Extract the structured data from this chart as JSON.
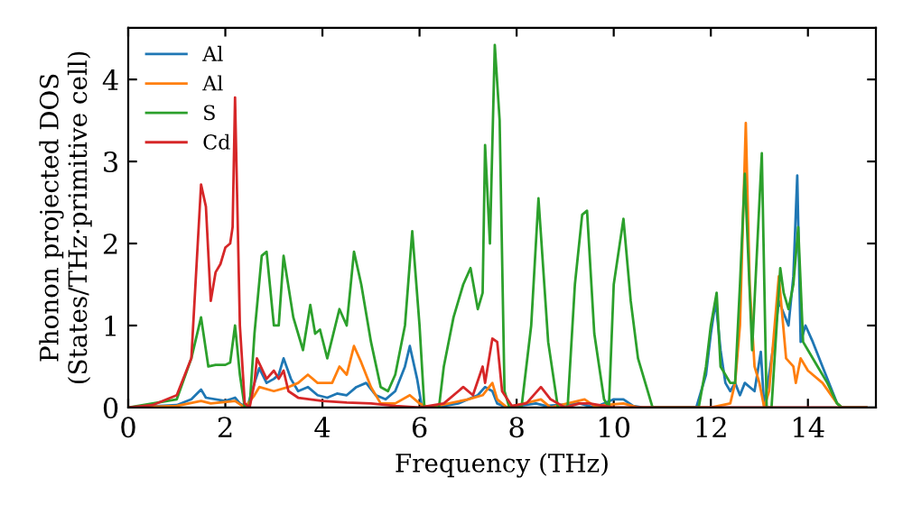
{
  "chart_data": {
    "type": "line",
    "xlabel": "Frequency (THz)",
    "ylabel": "Phonon projected DOS\n(States/THz·primitive cell)",
    "xlim": [
      0,
      15.4
    ],
    "ylim": [
      0,
      4.63
    ],
    "xticks": [
      0,
      2,
      4,
      6,
      8,
      10,
      12,
      14
    ],
    "yticks": [
      0,
      1,
      2,
      3,
      4
    ],
    "grid": false,
    "legend": "top left",
    "marker": "none",
    "line_style": "solid",
    "series": [
      {
        "name": "Al",
        "color": "#1f77b4",
        "x": [
          0,
          1.0,
          1.3,
          1.5,
          1.6,
          2.0,
          2.2,
          2.3,
          2.45,
          2.6,
          2.7,
          2.85,
          3.0,
          3.1,
          3.2,
          3.35,
          3.5,
          3.7,
          3.9,
          4.1,
          4.3,
          4.5,
          4.7,
          4.9,
          5.1,
          5.3,
          5.5,
          5.7,
          5.8,
          5.95,
          6.05,
          6.5,
          6.8,
          7.0,
          7.2,
          7.35,
          7.5,
          7.6,
          7.8,
          8.4,
          8.6,
          9.3,
          9.6,
          10.0,
          10.2,
          10.4,
          10.6,
          11.7,
          11.9,
          12.0,
          12.1,
          12.2,
          12.3,
          12.4,
          12.5,
          12.6,
          12.7,
          12.9,
          13.03,
          13.1,
          13.3,
          13.4,
          13.6,
          13.7,
          13.78,
          13.85,
          13.95,
          14.1,
          14.3,
          14.6,
          14.7,
          15.2
        ],
        "values": [
          0,
          0.03,
          0.1,
          0.22,
          0.12,
          0.08,
          0.12,
          0.05,
          0,
          0.3,
          0.48,
          0.3,
          0.35,
          0.4,
          0.6,
          0.35,
          0.2,
          0.25,
          0.15,
          0.12,
          0.17,
          0.15,
          0.25,
          0.3,
          0.15,
          0.1,
          0.2,
          0.5,
          0.75,
          0.35,
          0,
          0.02,
          0.05,
          0.1,
          0.15,
          0.25,
          0.2,
          0.05,
          0,
          0.05,
          0.02,
          0.05,
          0,
          0.1,
          0.1,
          0.02,
          0,
          0,
          0.4,
          0.9,
          1.3,
          0.7,
          0.3,
          0.2,
          0.3,
          0.15,
          0.3,
          0.2,
          0.68,
          0,
          0.8,
          1.3,
          1.0,
          1.6,
          2.83,
          0.8,
          1.0,
          0.8,
          0.5,
          0.05,
          0,
          0
        ]
      },
      {
        "name": "Al",
        "color": "#ff7f0e",
        "x": [
          0,
          1.0,
          1.5,
          1.7,
          2.2,
          2.4,
          2.6,
          2.7,
          3.0,
          3.3,
          3.5,
          3.7,
          3.9,
          4.2,
          4.35,
          4.5,
          4.65,
          4.8,
          5.0,
          5.2,
          5.5,
          5.8,
          6.0,
          6.2,
          7.0,
          7.3,
          7.5,
          7.6,
          7.8,
          8.5,
          8.7,
          9.4,
          9.6,
          10.2,
          10.5,
          12.0,
          12.4,
          12.5,
          12.6,
          12.72,
          12.8,
          12.9,
          13.0,
          13.1,
          13.2,
          13.4,
          13.55,
          13.7,
          13.75,
          13.85,
          14.0,
          14.3,
          14.6,
          14.7,
          15.2
        ],
        "values": [
          0,
          0.02,
          0.08,
          0.05,
          0.08,
          0,
          0.15,
          0.25,
          0.2,
          0.25,
          0.3,
          0.4,
          0.3,
          0.3,
          0.5,
          0.4,
          0.75,
          0.55,
          0.25,
          0.05,
          0.05,
          0.15,
          0.05,
          0,
          0.1,
          0.15,
          0.3,
          0.1,
          0,
          0.1,
          0,
          0.1,
          0.02,
          0.05,
          0,
          0,
          0.05,
          0.3,
          1.0,
          3.47,
          1.5,
          0.5,
          0.3,
          0,
          0.2,
          1.6,
          0.6,
          0.5,
          0.3,
          0.6,
          0.45,
          0.3,
          0.05,
          0,
          0
        ]
      },
      {
        "name": "S",
        "color": "#2ca02c",
        "x": [
          0,
          1.0,
          1.3,
          1.5,
          1.65,
          1.8,
          2.0,
          2.1,
          2.2,
          2.3,
          2.4,
          2.5,
          2.6,
          2.75,
          2.85,
          3.0,
          3.1,
          3.2,
          3.4,
          3.6,
          3.75,
          3.85,
          3.95,
          4.1,
          4.35,
          4.5,
          4.65,
          4.8,
          5.0,
          5.2,
          5.35,
          5.5,
          5.7,
          5.85,
          6.0,
          6.1,
          6.4,
          6.5,
          6.7,
          6.9,
          7.05,
          7.2,
          7.3,
          7.35,
          7.45,
          7.55,
          7.65,
          7.75,
          7.85,
          8.1,
          8.3,
          8.45,
          8.65,
          8.85,
          9.05,
          9.2,
          9.35,
          9.45,
          9.6,
          9.8,
          9.9,
          10.0,
          10.2,
          10.35,
          10.5,
          10.7,
          10.8,
          11.75,
          11.9,
          12.0,
          12.12,
          12.2,
          12.4,
          12.5,
          12.6,
          12.7,
          12.85,
          13.05,
          13.15,
          13.25,
          13.43,
          13.5,
          13.6,
          13.7,
          13.8,
          13.9,
          14.0,
          14.2,
          14.4,
          14.6,
          14.7,
          15.2
        ],
        "values": [
          0,
          0.1,
          0.6,
          1.1,
          0.5,
          0.52,
          0.52,
          0.55,
          1.0,
          0.4,
          0,
          0,
          0.9,
          1.85,
          1.9,
          1.0,
          1.0,
          1.85,
          1.1,
          0.7,
          1.25,
          0.9,
          0.95,
          0.6,
          1.2,
          1.0,
          1.9,
          1.5,
          0.8,
          0.25,
          0.2,
          0.4,
          1.0,
          2.15,
          1.0,
          0,
          0,
          0.5,
          1.1,
          1.5,
          1.7,
          1.2,
          1.4,
          3.2,
          2.0,
          4.42,
          3.5,
          0.2,
          0,
          0,
          1.0,
          2.55,
          0.8,
          0,
          0,
          1.5,
          2.35,
          2.4,
          0.9,
          0.1,
          0,
          1.5,
          2.3,
          1.3,
          0.6,
          0.2,
          0,
          0,
          0.5,
          1.0,
          1.4,
          0.5,
          0.3,
          0.3,
          1.5,
          2.85,
          0.7,
          3.1,
          0,
          0,
          1.7,
          1.4,
          1.2,
          1.5,
          2.2,
          0.8,
          0.7,
          0.5,
          0.3,
          0.05,
          0,
          0
        ]
      },
      {
        "name": "Cd",
        "color": "#d62728",
        "x": [
          0,
          0.5,
          1.0,
          1.3,
          1.5,
          1.6,
          1.7,
          1.8,
          1.9,
          2.0,
          2.1,
          2.15,
          2.2,
          2.3,
          2.4,
          2.5,
          2.6,
          2.65,
          2.85,
          3.0,
          3.1,
          3.2,
          3.3,
          3.5,
          4.0,
          4.5,
          5.0,
          5.5,
          6.0,
          6.5,
          6.9,
          7.1,
          7.3,
          7.35,
          7.5,
          7.6,
          7.7,
          7.9,
          8.2,
          8.5,
          8.7,
          9.0,
          9.3,
          9.5,
          10.0,
          15.2
        ],
        "values": [
          0,
          0.03,
          0.15,
          0.6,
          2.72,
          2.45,
          1.3,
          1.65,
          1.75,
          1.95,
          2.0,
          2.2,
          3.78,
          1.0,
          0.05,
          0,
          0.3,
          0.6,
          0.35,
          0.45,
          0.35,
          0.45,
          0.2,
          0.12,
          0.08,
          0.06,
          0.05,
          0.02,
          0,
          0.05,
          0.25,
          0.15,
          0.5,
          0.3,
          0.84,
          0.8,
          0.2,
          0.02,
          0.05,
          0.25,
          0.1,
          0,
          0.05,
          0.05,
          0,
          0
        ]
      }
    ]
  }
}
